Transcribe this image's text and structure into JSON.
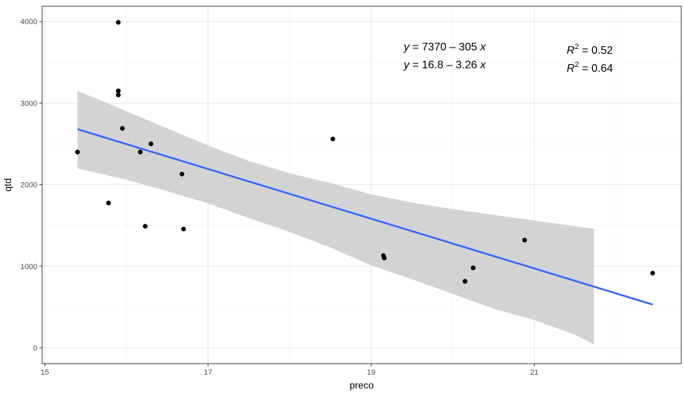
{
  "chart_data": {
    "type": "scatter",
    "xlabel": "preco",
    "ylabel": "qtd",
    "xlim": [
      15,
      22.5
    ],
    "ylim": [
      0,
      4000
    ],
    "x_ticks": [
      15,
      17,
      19,
      21
    ],
    "y_ticks": [
      0,
      1000,
      2000,
      3000,
      4000
    ],
    "grid": true,
    "points": [
      {
        "x": 15.4,
        "y": 2400
      },
      {
        "x": 15.78,
        "y": 1775
      },
      {
        "x": 15.9,
        "y": 3990
      },
      {
        "x": 15.9,
        "y": 3150
      },
      {
        "x": 15.9,
        "y": 3100
      },
      {
        "x": 15.95,
        "y": 2690
      },
      {
        "x": 16.17,
        "y": 2400
      },
      {
        "x": 16.23,
        "y": 1490
      },
      {
        "x": 16.3,
        "y": 2500
      },
      {
        "x": 16.68,
        "y": 2130
      },
      {
        "x": 16.7,
        "y": 1455
      },
      {
        "x": 18.53,
        "y": 2560
      },
      {
        "x": 19.15,
        "y": 1130
      },
      {
        "x": 19.16,
        "y": 1100
      },
      {
        "x": 20.15,
        "y": 815
      },
      {
        "x": 20.25,
        "y": 980
      },
      {
        "x": 20.88,
        "y": 1320
      },
      {
        "x": 22.45,
        "y": 915
      }
    ],
    "fit_line": {
      "color": "#3366ff",
      "segment": [
        {
          "x": 15.4,
          "y": 2680
        },
        {
          "x": 22.45,
          "y": 530
        }
      ]
    },
    "confidence_band": {
      "color": "#d3d3d3",
      "upper": [
        {
          "x": 15.4,
          "y": 3150
        },
        {
          "x": 16.0,
          "y": 2900
        },
        {
          "x": 16.5,
          "y": 2690
        },
        {
          "x": 17.0,
          "y": 2480
        },
        {
          "x": 17.5,
          "y": 2290
        },
        {
          "x": 18.0,
          "y": 2140
        },
        {
          "x": 18.5,
          "y": 2020
        },
        {
          "x": 19.0,
          "y": 1880
        },
        {
          "x": 19.5,
          "y": 1780
        },
        {
          "x": 20.0,
          "y": 1700
        },
        {
          "x": 20.5,
          "y": 1630
        },
        {
          "x": 21.0,
          "y": 1560
        },
        {
          "x": 21.5,
          "y": 1490
        },
        {
          "x": 21.73,
          "y": 1460
        }
      ],
      "lower": [
        {
          "x": 15.4,
          "y": 2200
        },
        {
          "x": 16.0,
          "y": 2060
        },
        {
          "x": 16.5,
          "y": 1920
        },
        {
          "x": 17.0,
          "y": 1770
        },
        {
          "x": 17.5,
          "y": 1590
        },
        {
          "x": 18.0,
          "y": 1420
        },
        {
          "x": 18.5,
          "y": 1230
        },
        {
          "x": 19.0,
          "y": 1010
        },
        {
          "x": 19.5,
          "y": 840
        },
        {
          "x": 20.0,
          "y": 660
        },
        {
          "x": 20.5,
          "y": 480
        },
        {
          "x": 21.0,
          "y": 340
        },
        {
          "x": 21.5,
          "y": 160
        },
        {
          "x": 21.73,
          "y": 40
        }
      ]
    },
    "annotations": {
      "eq1": {
        "y_var": "y",
        "eq": " = 7370 – 305 ",
        "x_var": "x"
      },
      "eq2": {
        "y_var": "y",
        "eq": " = 16.8 – 3.26 ",
        "x_var": "x"
      },
      "r2_1": {
        "var": "R",
        "sup": "2",
        "val": " = 0.52"
      },
      "r2_2": {
        "var": "R",
        "sup": "2",
        "val": " = 0.64"
      }
    }
  }
}
